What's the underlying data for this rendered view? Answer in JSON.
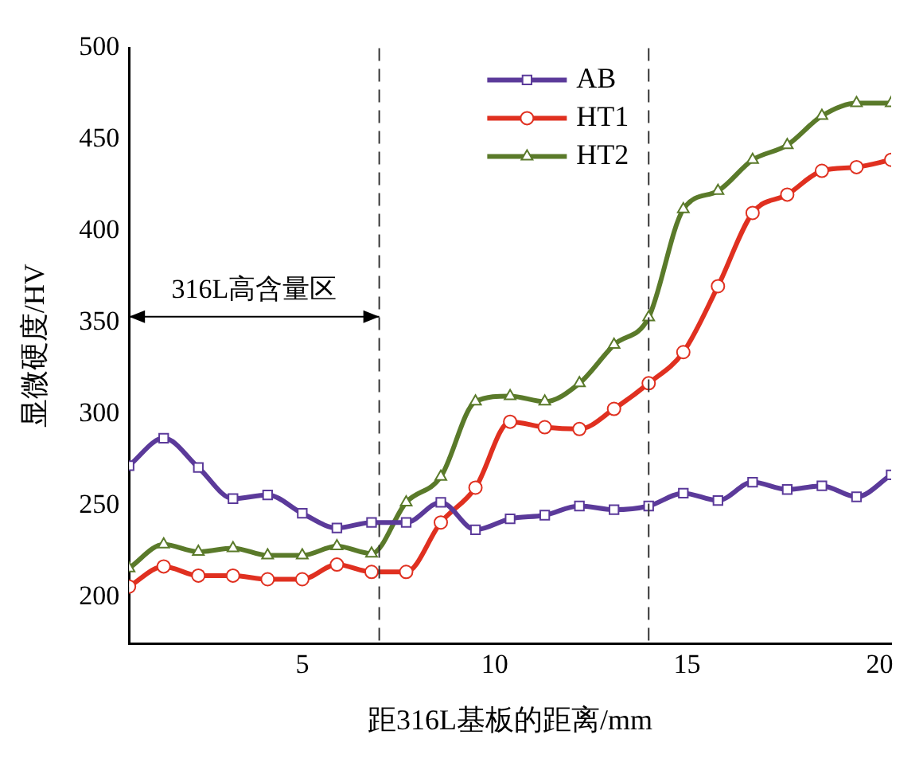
{
  "chart_data": {
    "type": "line",
    "xlabel": "距316L基板的距离/mm",
    "ylabel": "显微硬度/HV",
    "x": [
      0.5,
      1.4,
      2.3,
      3.2,
      4.1,
      5.0,
      5.9,
      6.8,
      7.7,
      8.6,
      9.5,
      10.4,
      11.3,
      12.2,
      13.1,
      14.0,
      14.9,
      15.8,
      16.7,
      17.6,
      18.5,
      19.4,
      20.3
    ],
    "series": [
      {
        "name": "AB",
        "color": "#5b3a9a",
        "marker": "square",
        "values": [
          272,
          287,
          271,
          254,
          256,
          246,
          238,
          241,
          241,
          252,
          237,
          243,
          245,
          250,
          248,
          250,
          257,
          253,
          263,
          259,
          261,
          255,
          267
        ]
      },
      {
        "name": "HT1",
        "color": "#e03020",
        "marker": "circle",
        "values": [
          206,
          217,
          212,
          212,
          210,
          210,
          218,
          214,
          214,
          241,
          260,
          296,
          293,
          292,
          303,
          317,
          334,
          370,
          410,
          420,
          433,
          435,
          439
        ]
      },
      {
        "name": "HT2",
        "color": "#5a7a2a",
        "marker": "triangle",
        "values": [
          216,
          229,
          225,
          227,
          223,
          223,
          228,
          224,
          252,
          266,
          307,
          310,
          307,
          317,
          338,
          353,
          412,
          422,
          439,
          447,
          463,
          470,
          470
        ]
      }
    ],
    "xlim": [
      0.5,
      20.3
    ],
    "xticks": [
      5,
      10,
      15,
      20
    ],
    "ylim": [
      175,
      500
    ],
    "yticks": [
      200,
      250,
      300,
      350,
      400,
      450,
      500
    ],
    "ref_lines": [
      {
        "axis": "x",
        "value": 7,
        "line_style": "dashed"
      },
      {
        "axis": "x",
        "value": 14,
        "line_style": "dashed"
      }
    ],
    "annotations": [
      "316L高含量区"
    ],
    "legend": "top",
    "grid": false,
    "line_style": "solid"
  }
}
